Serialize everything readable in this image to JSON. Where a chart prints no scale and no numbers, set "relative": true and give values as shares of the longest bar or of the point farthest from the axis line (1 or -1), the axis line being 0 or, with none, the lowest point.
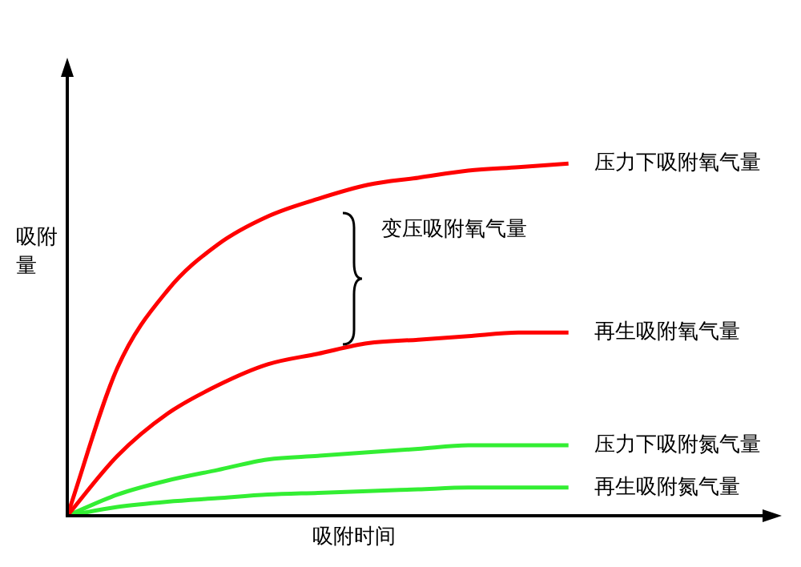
{
  "chart_data": {
    "type": "line",
    "relative": true,
    "xlabel": "吸附时间",
    "ylabel": "吸附量",
    "annotations": [
      "变压吸附氧气量"
    ],
    "categories": [
      null,
      null,
      null,
      null,
      null,
      null,
      null,
      null,
      null,
      null,
      null,
      null,
      null,
      null,
      null
    ],
    "legend": false,
    "marker": "none",
    "line_style": "solid",
    "series": [
      {
        "name": "压力下吸附氧气量",
        "color": "#ff0000",
        "values": [
          0,
          0.42,
          0.64,
          0.77,
          0.85,
          0.9,
          0.94,
          0.96,
          0.98,
          0.99,
          1.0,
          null,
          null,
          null,
          null
        ]
      },
      {
        "name": "再生吸附氧气量",
        "color": "#ff0000",
        "values": [
          0,
          0.17,
          0.29,
          0.37,
          0.43,
          0.46,
          0.49,
          0.5,
          0.51,
          0.52,
          0.52,
          null,
          null,
          null,
          null
        ]
      },
      {
        "name": "压力下吸附氮气量",
        "color": "#33ee33",
        "values": [
          0,
          0.06,
          0.1,
          0.13,
          0.16,
          0.17,
          0.18,
          0.19,
          0.2,
          0.2,
          0.2,
          null,
          null,
          null,
          null
        ]
      },
      {
        "name": "再生吸附氮气量",
        "color": "#33ee33",
        "values": [
          0,
          0.025,
          0.04,
          0.05,
          0.06,
          0.065,
          0.07,
          0.075,
          0.08,
          0.08,
          0.08,
          null,
          null,
          null,
          null
        ]
      }
    ]
  }
}
